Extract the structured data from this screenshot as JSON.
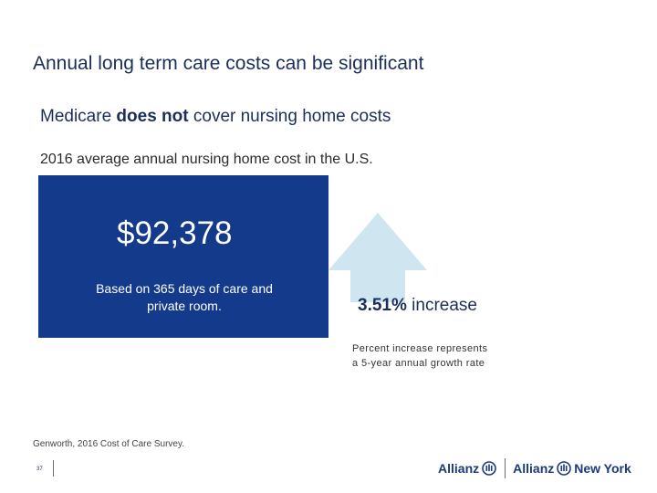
{
  "title": "Annual long term care costs can be significant",
  "subtitle": {
    "pre": "Medicare ",
    "bold": "does not",
    "post": " cover nursing home costs"
  },
  "caption": "2016 average annual nursing home cost in the U.S.",
  "cost": {
    "value": "$92,378",
    "note": "Based on 365 days of care and private room."
  },
  "increase": {
    "percent": "3.51%",
    "label": " increase",
    "note": "Percent increase represents a 5-year annual growth rate"
  },
  "source": "Genworth, 2016 Cost of Care Survey.",
  "page_number": "37",
  "logos": {
    "left": "Allianz",
    "right_brand": "Allianz",
    "right_region": "New York",
    "icon": "allianz-eagle-icon"
  },
  "colors": {
    "navy_box": "#143a8c",
    "arrow": "#cfe5ef",
    "title_text": "#1b2e5a",
    "logo": "#1a3a7a"
  }
}
